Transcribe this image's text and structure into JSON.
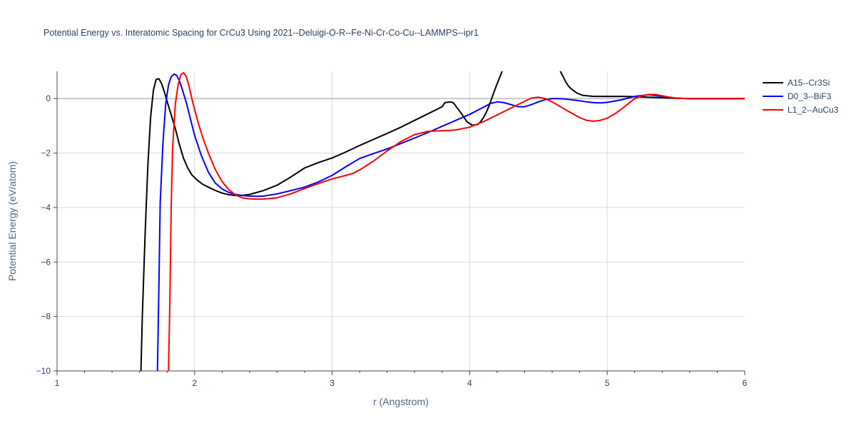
{
  "chart_data": {
    "type": "line",
    "title": "Potential Energy vs. Interatomic Spacing for CrCu3 Using 2021--Deluigi-O-R--Fe-Ni-Cr-Co-Cu--LAMMPS--ipr1",
    "xlabel": "r (Angstrom)",
    "ylabel": "Potential Energy (eV/atom)",
    "xlim": [
      1,
      6
    ],
    "ylim": [
      -10,
      1
    ],
    "xticks": [
      1,
      2,
      3,
      4,
      5,
      6
    ],
    "xtick_labels": [
      "1",
      "2",
      "3",
      "4",
      "5",
      "6"
    ],
    "yticks": [
      0,
      -2,
      -4,
      -6,
      -8,
      -10
    ],
    "ytick_labels": [
      "0",
      "−2",
      "−4",
      "−6",
      "−8",
      "−10"
    ],
    "grid": true,
    "legend_position": "right",
    "series": [
      {
        "name": "A15--Cr3Si",
        "color": "#000000",
        "x": [
          1.61,
          1.62,
          1.64,
          1.66,
          1.68,
          1.7,
          1.72,
          1.74,
          1.76,
          1.78,
          1.8,
          1.83,
          1.86,
          1.89,
          1.92,
          1.95,
          1.98,
          2.02,
          2.06,
          2.1,
          2.15,
          2.2,
          2.25,
          2.3,
          2.35,
          2.4,
          2.45,
          2.5,
          2.6,
          2.7,
          2.8,
          2.9,
          3.0,
          3.1,
          3.2,
          3.3,
          3.4,
          3.5,
          3.6,
          3.7,
          3.8,
          3.82,
          3.86,
          3.88,
          3.9,
          3.94,
          3.98,
          4.02,
          4.06,
          4.08,
          4.1,
          4.12,
          4.14,
          4.16,
          4.18,
          4.2,
          4.22,
          4.24,
          4.26,
          4.28,
          4.3,
          4.31,
          4.64,
          4.66,
          4.68,
          4.7,
          4.72,
          4.74,
          4.78,
          4.82,
          4.86,
          4.9,
          5.0,
          5.1,
          5.2,
          5.3,
          5.4,
          5.5,
          5.6,
          5.8,
          6.0
        ],
        "y": [
          -10.0,
          -8.0,
          -5.0,
          -2.5,
          -0.7,
          0.3,
          0.7,
          0.73,
          0.55,
          0.25,
          -0.1,
          -0.6,
          -1.1,
          -1.7,
          -2.2,
          -2.55,
          -2.8,
          -3.0,
          -3.15,
          -3.25,
          -3.37,
          -3.47,
          -3.53,
          -3.56,
          -3.55,
          -3.52,
          -3.45,
          -3.38,
          -3.18,
          -2.88,
          -2.55,
          -2.35,
          -2.18,
          -1.96,
          -1.72,
          -1.5,
          -1.28,
          -1.05,
          -0.8,
          -0.55,
          -0.3,
          -0.15,
          -0.12,
          -0.15,
          -0.28,
          -0.55,
          -0.85,
          -0.98,
          -0.95,
          -0.85,
          -0.7,
          -0.52,
          -0.28,
          0.0,
          0.28,
          0.55,
          0.8,
          1.05,
          1.3,
          1.55,
          1.8,
          1.95,
          1.2,
          1.0,
          0.8,
          0.6,
          0.45,
          0.35,
          0.2,
          0.12,
          0.1,
          0.08,
          0.08,
          0.08,
          0.07,
          0.05,
          0.03,
          0.01,
          0.0,
          0.0,
          0.0
        ]
      },
      {
        "name": "D0_3--BiF3",
        "color": "#0000ff",
        "x": [
          1.73,
          1.74,
          1.75,
          1.77,
          1.79,
          1.81,
          1.83,
          1.85,
          1.87,
          1.89,
          1.91,
          1.94,
          1.97,
          2.0,
          2.05,
          2.1,
          2.15,
          2.2,
          2.25,
          2.3,
          2.35,
          2.4,
          2.45,
          2.5,
          2.6,
          2.7,
          2.8,
          2.9,
          3.0,
          3.1,
          3.2,
          3.3,
          3.4,
          3.5,
          3.6,
          3.7,
          3.8,
          3.9,
          4.0,
          4.1,
          4.15,
          4.2,
          4.25,
          4.3,
          4.35,
          4.4,
          4.45,
          4.5,
          4.55,
          4.6,
          4.65,
          4.7,
          4.75,
          4.8,
          4.85,
          4.9,
          4.95,
          5.0,
          5.1,
          5.2,
          5.3,
          5.4,
          5.5,
          5.6,
          5.8,
          6.0
        ],
        "y": [
          -10.0,
          -7.0,
          -3.8,
          -1.6,
          -0.2,
          0.5,
          0.8,
          0.9,
          0.85,
          0.65,
          0.35,
          -0.15,
          -0.75,
          -1.35,
          -2.1,
          -2.7,
          -3.1,
          -3.32,
          -3.45,
          -3.52,
          -3.56,
          -3.58,
          -3.59,
          -3.58,
          -3.5,
          -3.38,
          -3.25,
          -3.06,
          -2.82,
          -2.5,
          -2.2,
          -2.02,
          -1.85,
          -1.65,
          -1.45,
          -1.24,
          -1.02,
          -0.8,
          -0.58,
          -0.32,
          -0.18,
          -0.12,
          -0.15,
          -0.22,
          -0.3,
          -0.3,
          -0.22,
          -0.12,
          -0.04,
          0.0,
          0.0,
          -0.02,
          -0.05,
          -0.08,
          -0.12,
          -0.15,
          -0.16,
          -0.14,
          -0.05,
          0.08,
          0.14,
          0.08,
          0.02,
          0.0,
          0.0,
          0.0
        ]
      },
      {
        "name": "L1_2--AuCu3",
        "color": "#ff0000",
        "x": [
          1.81,
          1.82,
          1.83,
          1.84,
          1.86,
          1.88,
          1.9,
          1.92,
          1.94,
          1.96,
          1.98,
          2.0,
          2.03,
          2.06,
          2.1,
          2.15,
          2.2,
          2.25,
          2.3,
          2.35,
          2.4,
          2.45,
          2.5,
          2.6,
          2.7,
          2.8,
          2.9,
          3.0,
          3.1,
          3.15,
          3.2,
          3.3,
          3.4,
          3.5,
          3.6,
          3.7,
          3.8,
          3.85,
          3.9,
          4.0,
          4.1,
          4.2,
          4.3,
          4.4,
          4.45,
          4.5,
          4.55,
          4.6,
          4.7,
          4.8,
          4.85,
          4.9,
          4.95,
          5.0,
          5.05,
          5.1,
          5.15,
          5.2,
          5.25,
          5.3,
          5.35,
          5.4,
          5.5,
          5.6,
          5.8,
          6.0
        ],
        "y": [
          -10.0,
          -7.5,
          -4.0,
          -1.8,
          -0.2,
          0.5,
          0.88,
          0.95,
          0.8,
          0.45,
          0.0,
          -0.4,
          -0.95,
          -1.45,
          -2.0,
          -2.6,
          -3.05,
          -3.35,
          -3.55,
          -3.65,
          -3.68,
          -3.69,
          -3.69,
          -3.64,
          -3.5,
          -3.3,
          -3.12,
          -2.95,
          -2.82,
          -2.75,
          -2.62,
          -2.3,
          -1.92,
          -1.58,
          -1.32,
          -1.2,
          -1.18,
          -1.17,
          -1.15,
          -1.05,
          -0.85,
          -0.6,
          -0.35,
          -0.1,
          0.02,
          0.05,
          0.0,
          -0.12,
          -0.42,
          -0.7,
          -0.8,
          -0.83,
          -0.8,
          -0.72,
          -0.58,
          -0.4,
          -0.2,
          0.0,
          0.1,
          0.15,
          0.15,
          0.1,
          0.01,
          0.0,
          0.0,
          0.0
        ]
      }
    ]
  }
}
